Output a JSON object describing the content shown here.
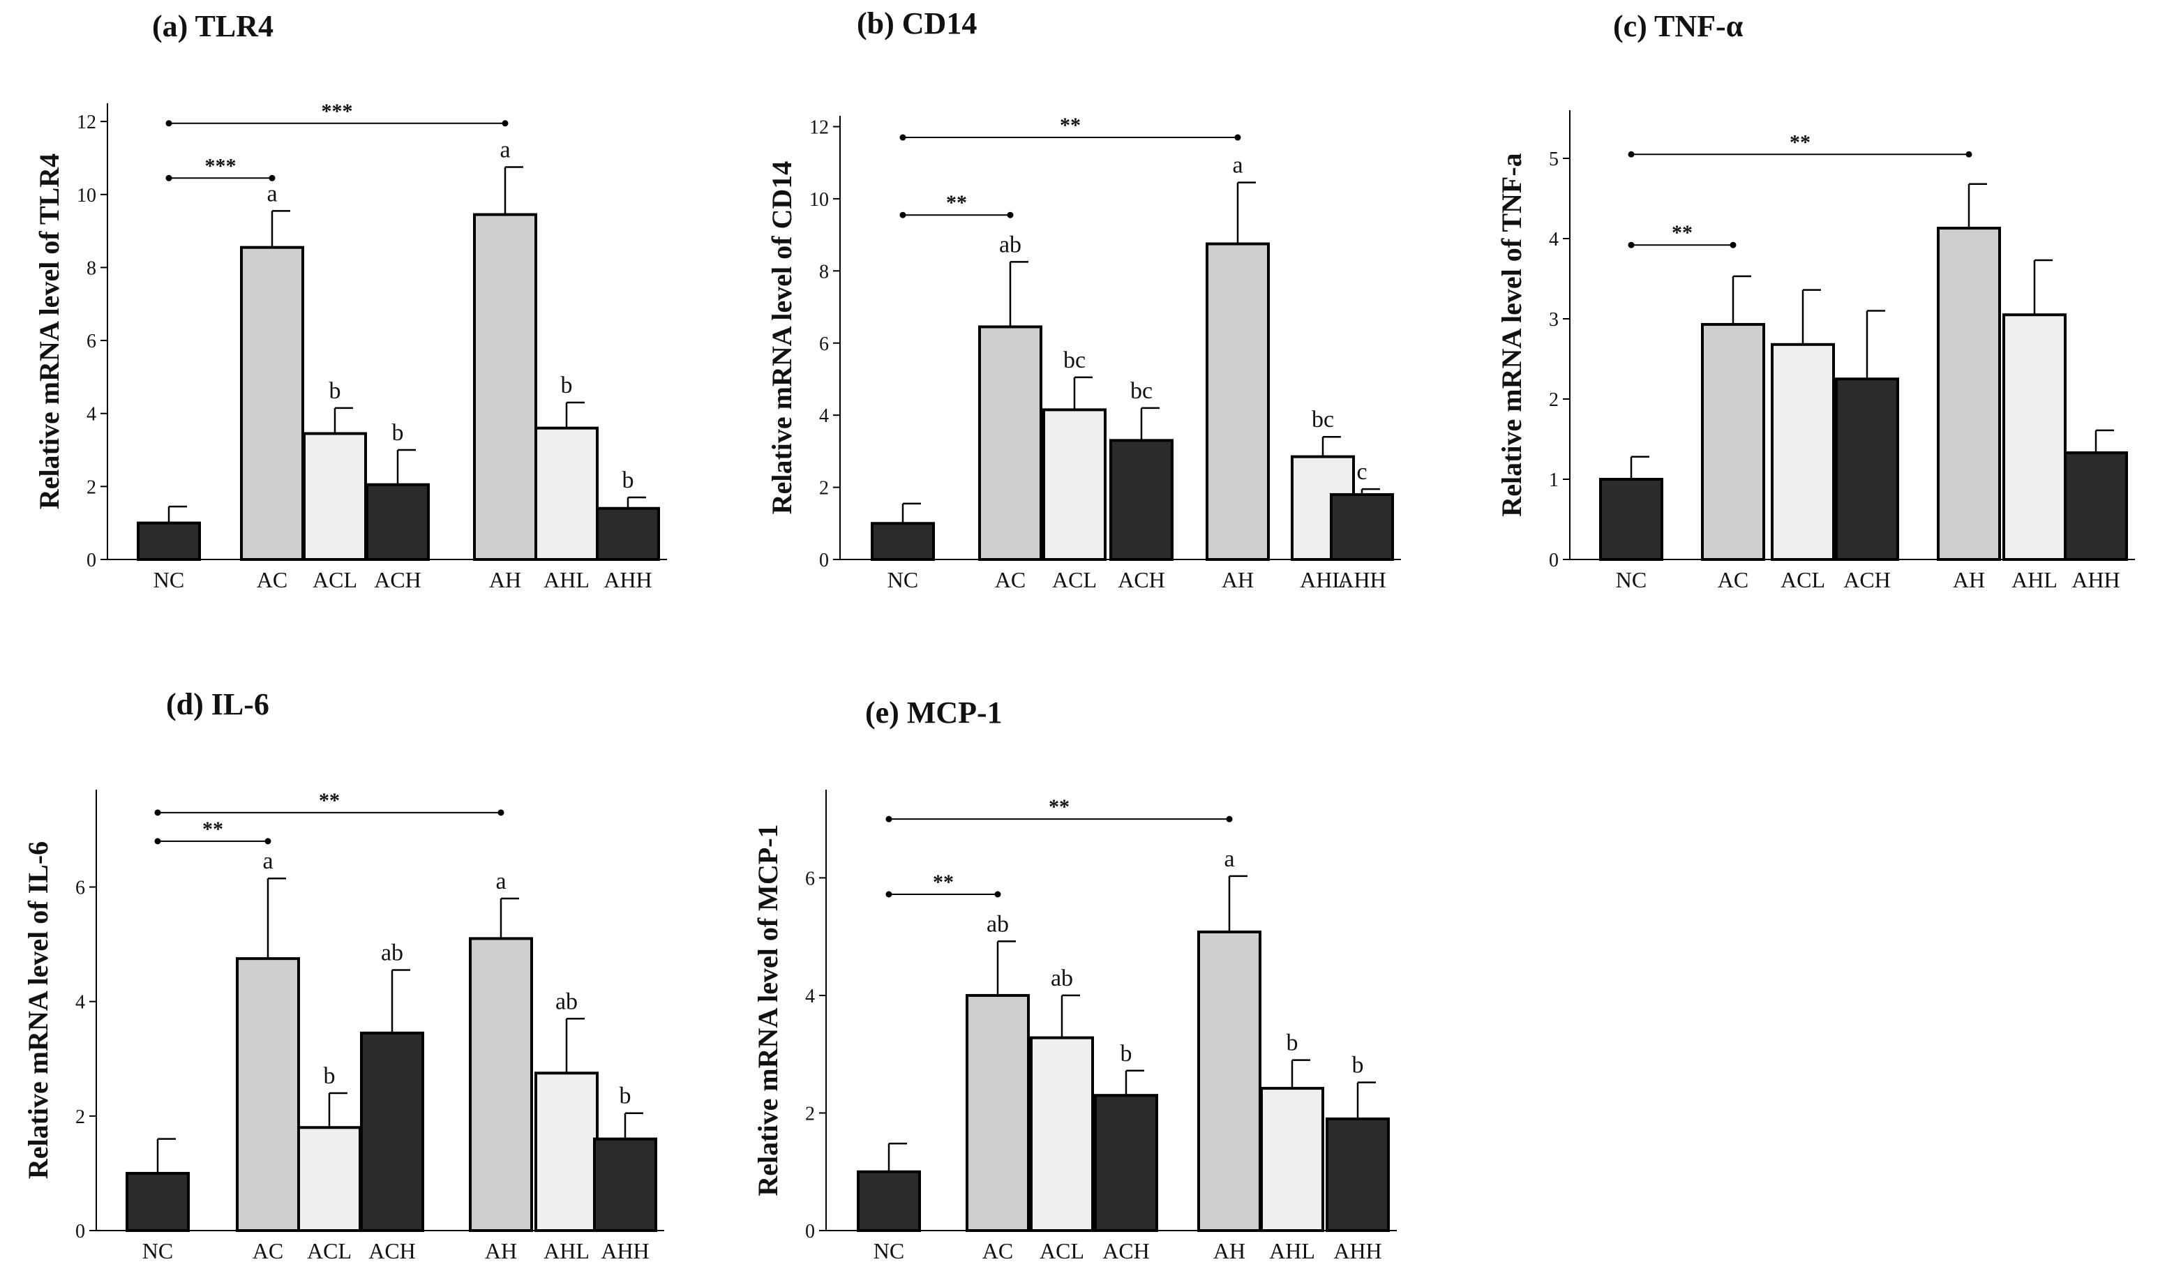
{
  "chart_data": [
    {
      "type": "bar",
      "title": "(a) TLR4",
      "ylabel": "Relative mRNA level of TLR4",
      "categories": [
        "NC",
        "AC",
        "ACL",
        "ACH",
        "AH",
        "AHL",
        "AHH"
      ],
      "values": [
        1.0,
        8.55,
        3.45,
        2.05,
        9.45,
        3.6,
        1.4
      ],
      "errors": [
        0.45,
        1.0,
        0.7,
        0.95,
        1.3,
        0.7,
        0.3
      ],
      "letters": [
        "",
        "a",
        "b",
        "b",
        "a",
        "b",
        "b"
      ],
      "ylim": [
        0,
        12.5
      ],
      "yticks": [
        0,
        2,
        4,
        6,
        8,
        10,
        12
      ],
      "significance": [
        {
          "from": "NC",
          "to": "AC",
          "y": 10.45,
          "label": "***"
        },
        {
          "from": "NC",
          "to": "AH",
          "y": 11.95,
          "label": "***"
        }
      ]
    },
    {
      "type": "bar",
      "title": "(b) CD14",
      "ylabel": "Relative mRNA level of CD14",
      "categories": [
        "NC",
        "AC",
        "ACL",
        "ACH",
        "AH",
        "AHL",
        "AHH"
      ],
      "values": [
        1.0,
        6.45,
        4.15,
        3.3,
        8.75,
        2.85,
        1.8
      ],
      "errors": [
        0.55,
        1.8,
        0.9,
        0.9,
        1.7,
        0.55,
        0.15
      ],
      "letters": [
        "",
        "ab",
        "bc",
        "bc",
        "a",
        "bc",
        "c"
      ],
      "ylim": [
        0,
        12.3
      ],
      "yticks": [
        0,
        2,
        4,
        6,
        8,
        10,
        12
      ],
      "significance": [
        {
          "from": "NC",
          "to": "AC",
          "y": 9.55,
          "label": "**"
        },
        {
          "from": "NC",
          "to": "AH",
          "y": 11.7,
          "label": "**"
        }
      ]
    },
    {
      "type": "bar",
      "title": "(c) TNF-α",
      "ylabel": "Relative mRNA level of TNF-a",
      "categories": [
        "NC",
        "AC",
        "ACL",
        "ACH",
        "AH",
        "AHL",
        "AHH"
      ],
      "values": [
        1.0,
        2.93,
        2.68,
        2.25,
        4.13,
        3.05,
        1.33
      ],
      "errors": [
        0.28,
        0.6,
        0.68,
        0.85,
        0.55,
        0.68,
        0.28
      ],
      "letters": [
        "",
        "",
        "",
        "",
        "",
        "",
        ""
      ],
      "ylim": [
        0,
        5.6
      ],
      "yticks": [
        0,
        1,
        2,
        3,
        4,
        5
      ],
      "significance": [
        {
          "from": "NC",
          "to": "AC",
          "y": 3.92,
          "label": "**"
        },
        {
          "from": "NC",
          "to": "AH",
          "y": 5.05,
          "label": "**"
        }
      ]
    },
    {
      "type": "bar",
      "title": "(d) IL-6",
      "ylabel": "Relative mRNA level of IL-6",
      "categories": [
        "NC",
        "AC",
        "ACL",
        "ACH",
        "AH",
        "AHL",
        "AHH"
      ],
      "values": [
        1.0,
        4.75,
        1.8,
        3.45,
        5.1,
        2.75,
        1.6
      ],
      "errors": [
        0.6,
        1.4,
        0.6,
        1.1,
        0.7,
        0.95,
        0.45
      ],
      "letters": [
        "",
        "a",
        "b",
        "ab",
        "a",
        "ab",
        "b"
      ],
      "ylim": [
        0,
        7.7
      ],
      "yticks": [
        0,
        2,
        4,
        6
      ],
      "significance": [
        {
          "from": "NC",
          "to": "AC",
          "y": 6.8,
          "label": "**"
        },
        {
          "from": "NC",
          "to": "AH",
          "y": 7.3,
          "label": "**"
        }
      ]
    },
    {
      "type": "bar",
      "title": "(e) MCP-1",
      "ylabel": "Relative mRNA level of MCP-1",
      "categories": [
        "NC",
        "AC",
        "ACL",
        "ACH",
        "AH",
        "AHL",
        "AHH"
      ],
      "values": [
        1.0,
        4.0,
        3.28,
        2.3,
        5.08,
        2.42,
        1.9
      ],
      "errors": [
        0.48,
        0.92,
        0.72,
        0.42,
        0.95,
        0.48,
        0.62
      ],
      "letters": [
        "",
        "ab",
        "ab",
        "b",
        "a",
        "b",
        "b"
      ],
      "ylim": [
        0,
        7.5
      ],
      "yticks": [
        0,
        2,
        4,
        6
      ],
      "significance": [
        {
          "from": "NC",
          "to": "AC",
          "y": 5.72,
          "label": "**"
        },
        {
          "from": "NC",
          "to": "AH",
          "y": 7.0,
          "label": "**"
        }
      ]
    }
  ],
  "colors": {
    "NC": "#2b2b2b",
    "AC": "#cfcfcf",
    "ACL": "#efefef",
    "ACH": "#2b2b2b",
    "AH": "#cfcfcf",
    "AHL": "#efefef",
    "AHH": "#2b2b2b",
    "outline": "#000000"
  }
}
